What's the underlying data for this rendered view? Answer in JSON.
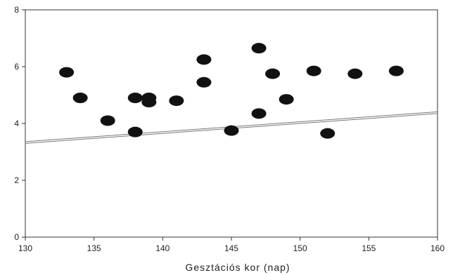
{
  "chart_data": {
    "type": "scatter",
    "title": "",
    "xlabel": "Gesztációs kor (nap)",
    "ylabel": "",
    "xlim": [
      130,
      160
    ],
    "ylim": [
      0,
      8
    ],
    "x_ticks": [
      "130",
      "135",
      "140",
      "145",
      "150",
      "155",
      "160"
    ],
    "y_ticks": [
      "0",
      "2",
      "4",
      "6",
      "8"
    ],
    "grid": false,
    "legend": "none",
    "points": [
      {
        "x": 133,
        "y": 5.8
      },
      {
        "x": 134,
        "y": 4.9
      },
      {
        "x": 136,
        "y": 4.1
      },
      {
        "x": 138,
        "y": 4.9
      },
      {
        "x": 138,
        "y": 3.7
      },
      {
        "x": 139,
        "y": 4.9
      },
      {
        "x": 139,
        "y": 4.75
      },
      {
        "x": 141,
        "y": 4.8
      },
      {
        "x": 143,
        "y": 6.25
      },
      {
        "x": 143,
        "y": 5.45
      },
      {
        "x": 145,
        "y": 3.75
      },
      {
        "x": 147,
        "y": 6.65
      },
      {
        "x": 147,
        "y": 4.35
      },
      {
        "x": 148,
        "y": 5.75
      },
      {
        "x": 149,
        "y": 4.85
      },
      {
        "x": 151,
        "y": 5.85
      },
      {
        "x": 152,
        "y": 3.65
      },
      {
        "x": 154,
        "y": 5.75
      },
      {
        "x": 157,
        "y": 5.85
      }
    ],
    "regression_line": {
      "x": [
        130,
        160
      ],
      "y": [
        3.33,
        4.38
      ]
    },
    "colors": {
      "points": "#111111",
      "line": "#777777",
      "axis": "#333333"
    }
  }
}
